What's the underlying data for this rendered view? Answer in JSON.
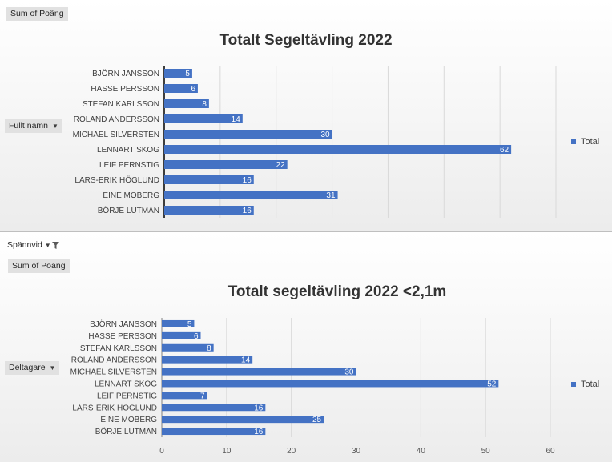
{
  "field_buttons": {
    "top_value_field": "Sum of Poäng",
    "top_row_field": "Fullt namn",
    "filter_field": "Spännvid",
    "bottom_value_field": "Sum of Poäng",
    "bottom_row_field": "Deltagare"
  },
  "colors": {
    "bar": "#4472c4",
    "grid": "#d9d9d9",
    "axis": "#000000"
  },
  "chart_data": [
    {
      "type": "bar",
      "orientation": "horizontal",
      "title": "Totalt Segeltävling 2022",
      "categories": [
        "BJÖRN JANSSON",
        "HASSE PERSSON",
        "STEFAN KARLSSON",
        "ROLAND ANDERSSON",
        "MICHAEL SILVERSTEN",
        "LENNART SKOG",
        "LEIF PERNSTIG",
        "LARS-ERIK HÖGLUND",
        "EINE MOBERG",
        "BÖRJE LUTMAN"
      ],
      "series": [
        {
          "name": "Total",
          "values": [
            5,
            6,
            8,
            14,
            30,
            62,
            22,
            16,
            31,
            16
          ]
        }
      ],
      "xlim": [
        0,
        70
      ],
      "grid": true,
      "x_tick_labels_visible": false,
      "legend": "right"
    },
    {
      "type": "bar",
      "orientation": "horizontal",
      "title": "Totalt segeltävling 2022 <2,1m",
      "categories": [
        "BJÖRN JANSSON",
        "HASSE PERSSON",
        "STEFAN KARLSSON",
        "ROLAND ANDERSSON",
        "MICHAEL SILVERSTEN",
        "LENNART SKOG",
        "LEIF PERNSTIG",
        "LARS-ERIK HÖGLUND",
        "EINE MOBERG",
        "BÖRJE LUTMAN"
      ],
      "series": [
        {
          "name": "Total",
          "values": [
            5,
            6,
            8,
            14,
            30,
            52,
            7,
            16,
            25,
            16
          ]
        }
      ],
      "xlim": [
        0,
        60
      ],
      "x_ticks": [
        0,
        10,
        20,
        30,
        40,
        50,
        60
      ],
      "grid": true,
      "x_tick_labels_visible": true,
      "legend": "right"
    }
  ]
}
